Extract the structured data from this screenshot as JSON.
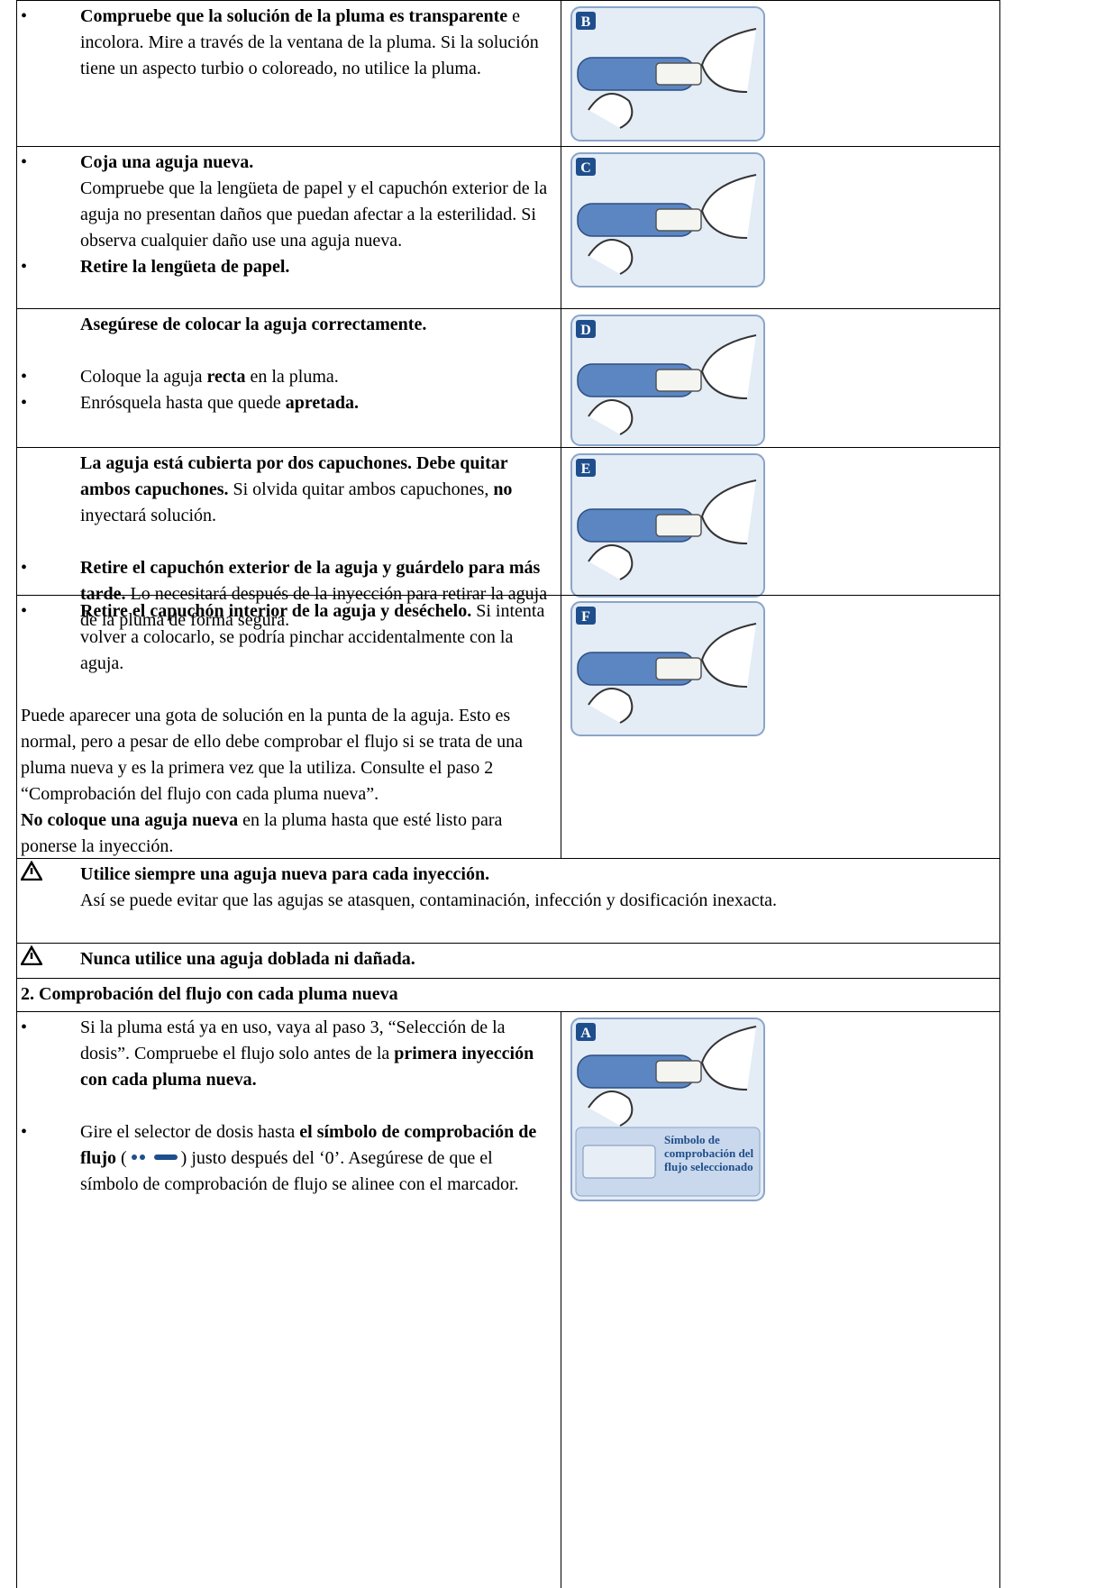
{
  "rows": [
    {
      "text": [
        "Compruebe que la solución de la pluma es transparente",
        " e incolora. Mire a través de la ventana de la pluma. Si la solución tiene un aspecto turbio o coloreado, no utilice la pluma."
      ],
      "figure": "B"
    },
    {
      "text": [
        "Coja una aguja nueva.",
        "Compruebe que la lengüeta de papel y el capuchón exterior de la aguja no presentan daños que puedan afectar a la esterilidad. Si observa cualquier daño use una aguja nueva.",
        "Retire la lengüeta de papel."
      ],
      "figure": "C"
    },
    {
      "text": [
        "Asegúrese de colocar la aguja correctamente.",
        "Coloque la aguja ",
        "recta",
        " en la pluma.",
        "Enrósquela hasta que quede ",
        "apretada."
      ],
      "figure": "D"
    },
    {
      "text": [
        "La aguja está cubierta por dos capuchones. Debe quitar ambos capuchones.",
        " Si olvida quitar ambos capuchones, ",
        "no",
        " inyectará solución.",
        "Retire el capuchón exterior de la aguja y guárdelo para más tarde.",
        " Lo necesitará después de la inyección para retirar la aguja de la pluma de forma segura."
      ],
      "figure": "E"
    },
    {
      "text": [
        "Retire el capuchón interior de la aguja y deséchelo.",
        " Si intenta volver a colocarlo, se podría pinchar accidentalmente con la aguja.",
        "Puede aparecer una gota de solución en la punta de la aguja. Esto es normal, pero a pesar de ello debe comprobar el flujo si se trata de una pluma nueva y es la primera vez que la utiliza. Consulte el paso 2 “Comprobación del flujo con cada pluma nueva”.",
        "No coloque una aguja nueva",
        " en la pluma hasta que esté listo para ponerse la inyección."
      ],
      "figure": "F"
    }
  ],
  "warnings": [
    {
      "title": "Utilice siempre una aguja nueva para cada inyección.",
      "text": "Así se puede evitar que las agujas se atasquen, contaminación, infección y dosificación inexacta."
    },
    {
      "title": "Nunca utilice una aguja doblada ni dañada."
    }
  ],
  "section": {
    "heading": "2. Comprobación del flujo con cada pluma nueva",
    "text": [
      "Si la pluma está ya en uso, vaya al paso 3, “Selección de la dosis”. Compruebe el flujo solo antes de la ",
      "primera inyección con cada pluma nueva.",
      "Gire el selector de dosis hasta ",
      "el símbolo de comprobación de flujo",
      " (",
      ") justo después del ‘0’. Asegúrese de que el símbolo de comprobación de flujo se alinee con el marcador."
    ],
    "figure": "A",
    "figure_caption": "Símbolo de comprobación del flujo seleccionado"
  }
}
